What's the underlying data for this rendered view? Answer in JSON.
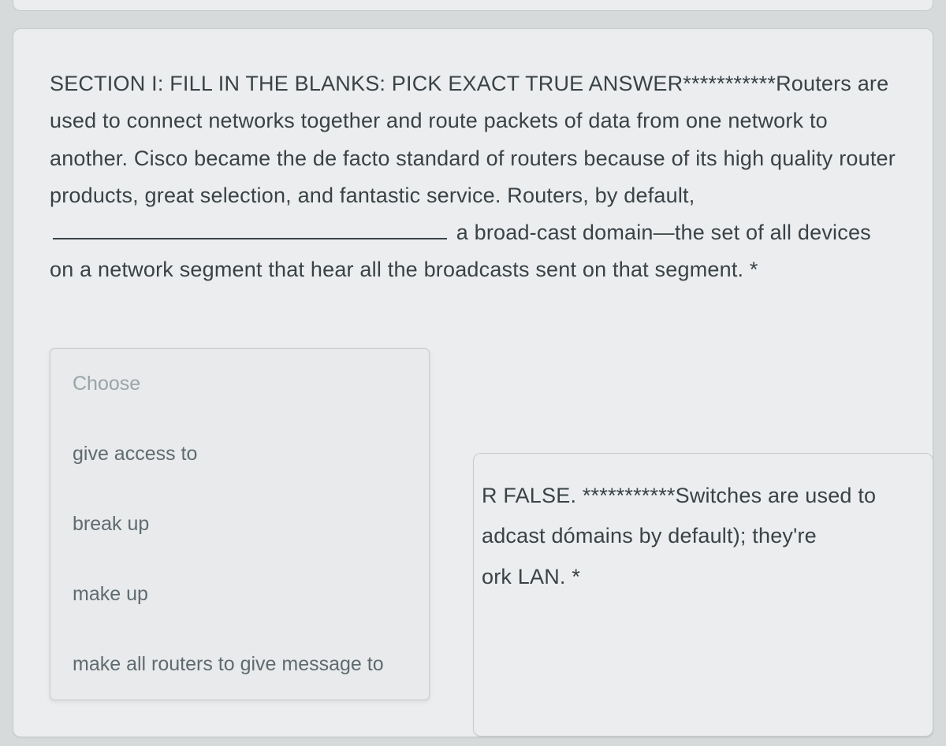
{
  "question": {
    "prefix": "SECTION I: FILL IN THE BLANKS: PICK EXACT TRUE ANSWER***********Routers are used to connect networks together and route packets of data from one network to another. Cisco became the de facto standard of routers because of its high quality router products, great selection, and fantastic service. Routers, by default,",
    "suffix": "a broad-cast domain—the set of all devices on a network segment that hear all the broadcasts sent on that segment. *"
  },
  "dropdown": {
    "placeholder": "Choose",
    "options": [
      "give access to",
      "break up",
      "make up",
      "make all routers to give message to"
    ]
  },
  "partial_card": {
    "line1": "R FALSE. ***********Switches are used to",
    "line2": "adcast dómains by default); they're",
    "line3": "ork LAN. *"
  }
}
